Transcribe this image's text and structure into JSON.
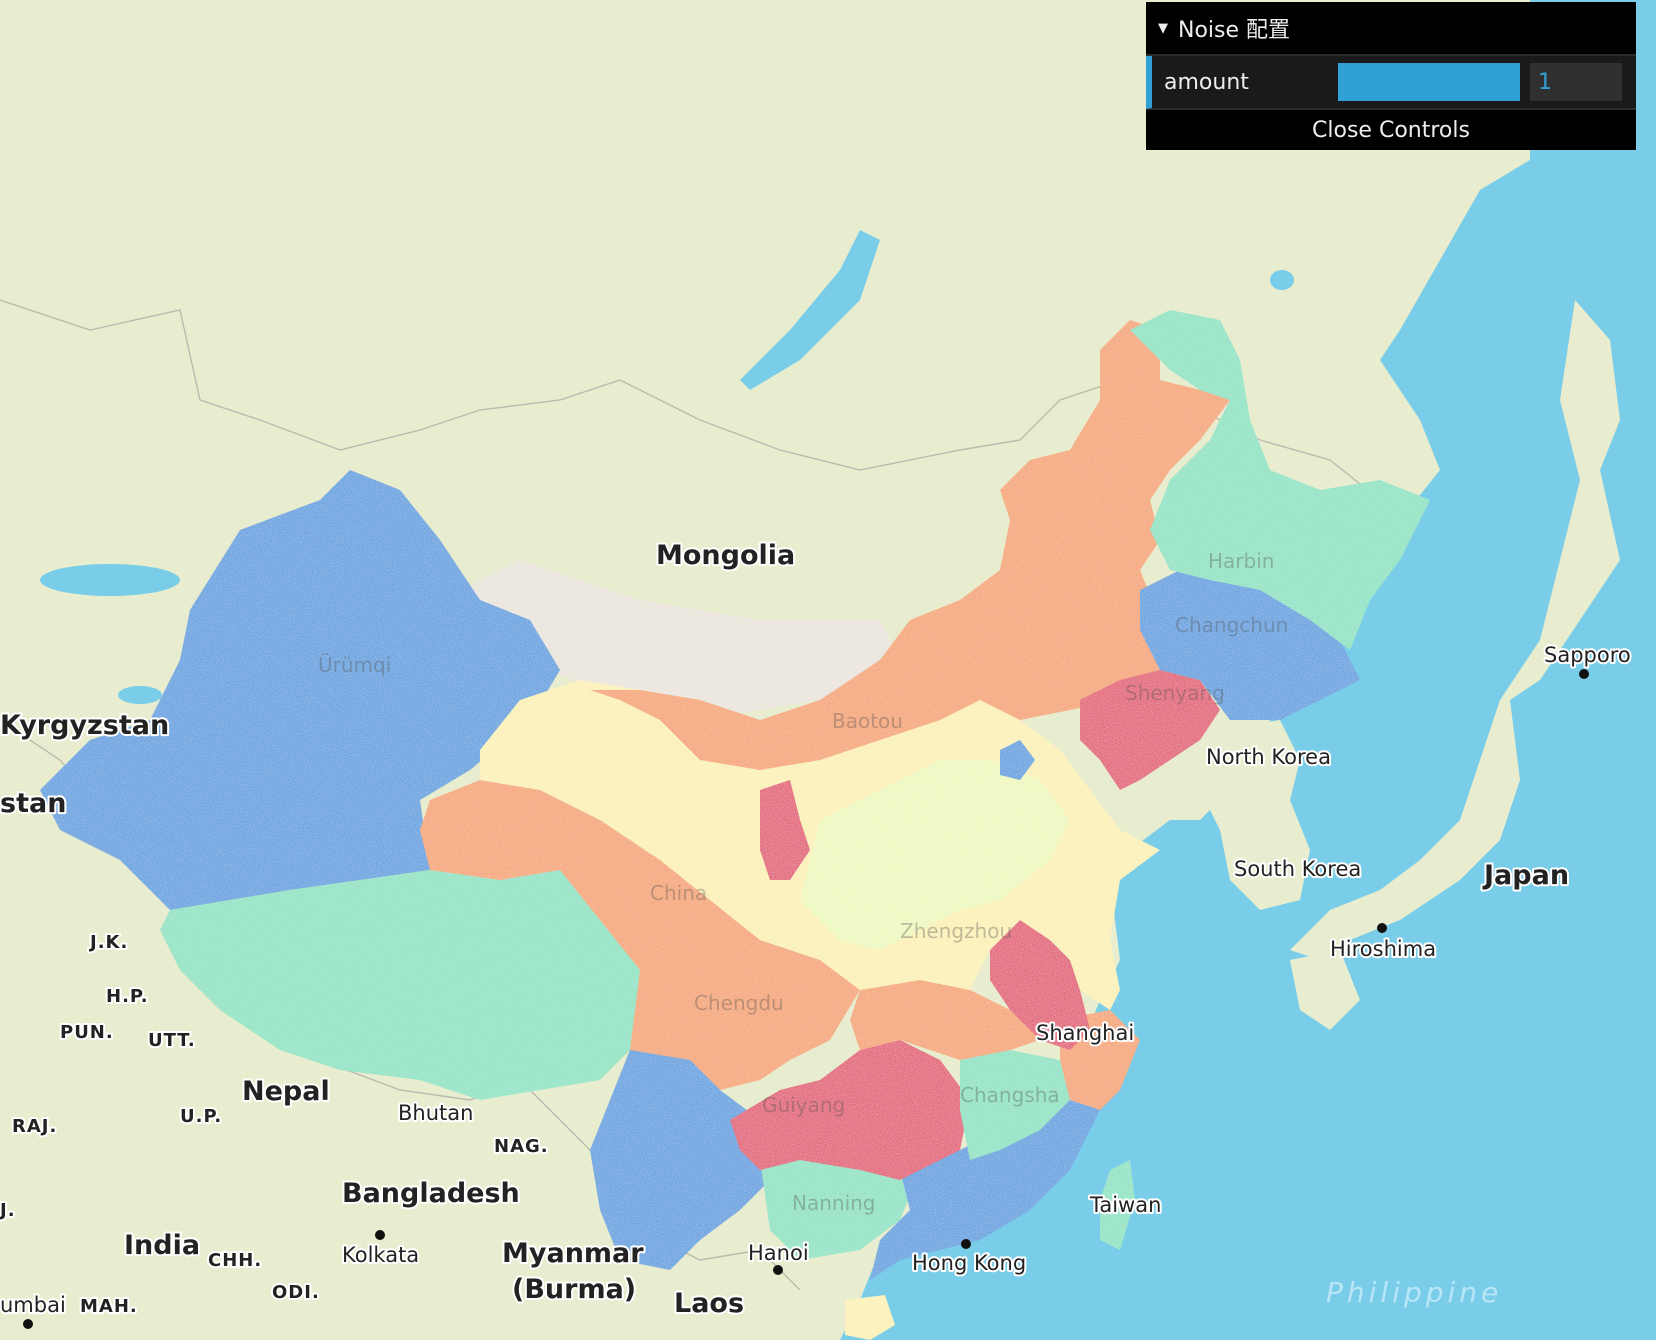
{
  "panel": {
    "title": "Noise 配置",
    "control_label": "amount",
    "control_value": "1",
    "control_fraction": 1,
    "close_label": "Close Controls",
    "accent": "#2fa1d6"
  },
  "map": {
    "countries": [
      "Mongolia",
      "Kyrgyzstan",
      "stan",
      "Nepal",
      "Bhutan",
      "Bangladesh",
      "India",
      "Myanmar",
      "(Burma)",
      "Laos",
      "North Korea",
      "South Korea",
      "Japan"
    ],
    "cities": [
      "Sapporo",
      "Hiroshima",
      "Kolkata",
      "Hanoi",
      "Hong Kong",
      "Shanghai",
      "Taiwan",
      "umbai"
    ],
    "states": [
      "J.K.",
      "H.P.",
      "PUN.",
      "UTT.",
      "RAJ.",
      "U.P.",
      "NAG.",
      "CHH.",
      "ODI.",
      "MAH.",
      "J."
    ],
    "sea": "Philippine",
    "ghost_labels": [
      "Ürümqi",
      "Harbin",
      "Changchun",
      "Shenyang",
      "Baotou",
      "China",
      "Zhengzhou",
      "Chengdu",
      "Guiyang",
      "Nanning",
      "Changsha"
    ],
    "colors": {
      "land": "#e9edcf",
      "water": "#79cde9",
      "blue": "#3a94dd",
      "teal": "#7fe0bd",
      "orange": "#f59a5c",
      "red": "#e0365c",
      "yellow": "#fbefae",
      "lightgreen": "#edf7b8"
    }
  }
}
